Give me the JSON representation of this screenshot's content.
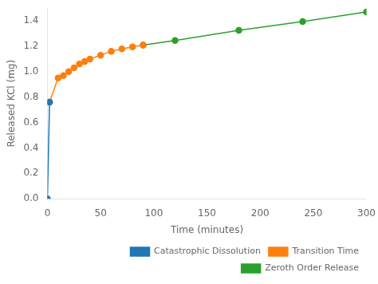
{
  "chart_data": {
    "type": "line",
    "xlabel": "Time (minutes)",
    "ylabel": "Released KCl (mg)",
    "xlim": [
      0,
      300
    ],
    "ylim": [
      0.0,
      1.5
    ],
    "xticks": [
      0,
      50,
      100,
      150,
      200,
      250,
      300
    ],
    "yticks": [
      {
        "value": 0.0,
        "label": "0.0"
      },
      0.2,
      0.4,
      0.6,
      0.8,
      {
        "value": 1.0,
        "label": "1.0"
      },
      1.2,
      1.4
    ],
    "grid": false,
    "legend": "lower right",
    "series": [
      {
        "name": "Catastrophic Dissolution",
        "color": "#1f77b4",
        "marker": "circle",
        "x": [
          0,
          2
        ],
        "values": [
          0.0,
          0.76
        ]
      },
      {
        "name": "Transition Time",
        "color": "#ff7f0e",
        "marker": "circle",
        "x": [
          2,
          10,
          15,
          20,
          25,
          30,
          35,
          40,
          50,
          60,
          70,
          80,
          90
        ],
        "values": [
          0.76,
          0.95,
          0.97,
          1.0,
          1.03,
          1.06,
          1.08,
          1.1,
          1.13,
          1.16,
          1.18,
          1.195,
          1.21
        ]
      },
      {
        "name": "Zeroth Order Release",
        "color": "#2ca02c",
        "marker": "circle",
        "x": [
          90,
          120,
          180,
          240,
          300
        ],
        "values": [
          1.21,
          1.245,
          1.325,
          1.395,
          1.47
        ]
      }
    ]
  }
}
